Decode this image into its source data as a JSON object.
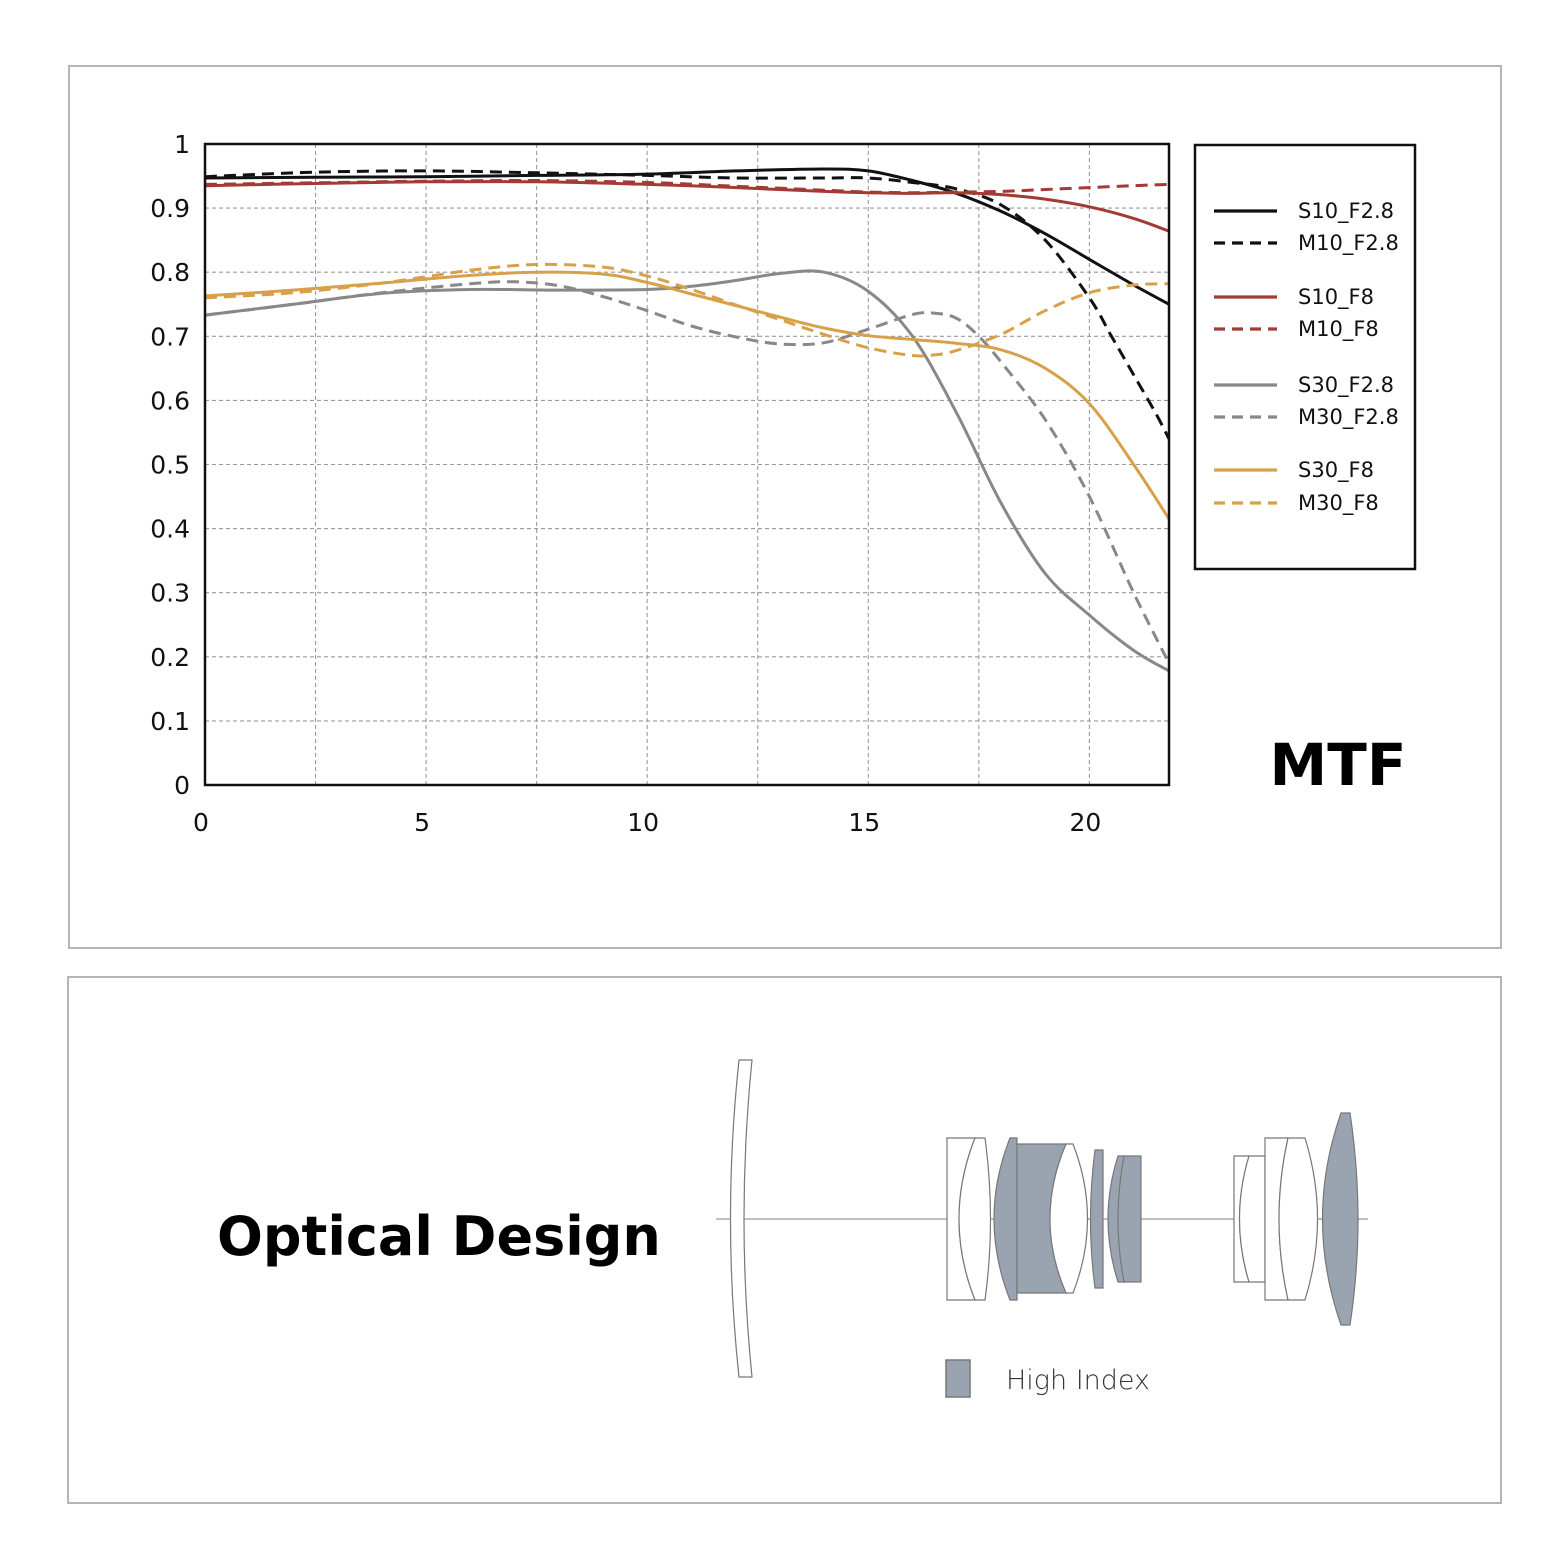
{
  "chart_data": {
    "type": "line",
    "title": "MTF",
    "xlabel": "",
    "ylabel": "",
    "xlim": [
      0,
      21.8
    ],
    "ylim": [
      0,
      1
    ],
    "xticks": [
      "0",
      "5",
      "10",
      "15",
      "20"
    ],
    "yticks": [
      "0",
      "0.1",
      "0.2",
      "0.3",
      "0.4",
      "0.5",
      "0.6",
      "0.7",
      "0.8",
      "0.9",
      "1"
    ],
    "grid": true,
    "legend_position": "right",
    "series": [
      {
        "name": "S10_F2.8",
        "color": "#111111",
        "dashed": false,
        "x": [
          0,
          2.5,
          5,
          7.5,
          10,
          12,
          14,
          15,
          16,
          17,
          18,
          19,
          20,
          21,
          21.8
        ],
        "y": [
          0.947,
          0.948,
          0.949,
          0.951,
          0.953,
          0.958,
          0.961,
          0.958,
          0.943,
          0.923,
          0.895,
          0.86,
          0.82,
          0.78,
          0.75
        ]
      },
      {
        "name": "M10_F2.8",
        "color": "#111111",
        "dashed": true,
        "x": [
          0,
          2.5,
          5,
          7.5,
          10,
          12,
          14,
          15,
          16,
          17,
          18,
          19,
          20,
          20.5,
          21,
          21.5,
          21.8
        ],
        "y": [
          0.949,
          0.956,
          0.958,
          0.955,
          0.951,
          0.947,
          0.947,
          0.947,
          0.94,
          0.93,
          0.905,
          0.85,
          0.76,
          0.7,
          0.64,
          0.58,
          0.54
        ]
      },
      {
        "name": "S10_F8",
        "color": "#a33a35",
        "dashed": false,
        "x": [
          0,
          3,
          5,
          7.5,
          10,
          12,
          14,
          15,
          16,
          17,
          18,
          19,
          20,
          21,
          21.8
        ],
        "y": [
          0.935,
          0.939,
          0.941,
          0.941,
          0.937,
          0.932,
          0.926,
          0.924,
          0.923,
          0.924,
          0.921,
          0.914,
          0.902,
          0.884,
          0.864
        ]
      },
      {
        "name": "M10_F8",
        "color": "#a33a35",
        "dashed": true,
        "x": [
          0,
          3,
          5,
          7.5,
          10,
          12,
          14,
          15,
          16,
          17,
          18,
          19,
          20,
          21,
          21.8
        ],
        "y": [
          0.937,
          0.94,
          0.942,
          0.943,
          0.94,
          0.934,
          0.928,
          0.925,
          0.924,
          0.925,
          0.926,
          0.929,
          0.932,
          0.935,
          0.937
        ]
      },
      {
        "name": "S30_F2.8",
        "color": "#888888",
        "dashed": false,
        "x": [
          0,
          2,
          4,
          6,
          8,
          10,
          11,
          12,
          13,
          14,
          15,
          16,
          17,
          18,
          19,
          20,
          21,
          21.8
        ],
        "y": [
          0.733,
          0.75,
          0.767,
          0.773,
          0.772,
          0.773,
          0.778,
          0.787,
          0.798,
          0.8,
          0.77,
          0.7,
          0.58,
          0.44,
          0.33,
          0.265,
          0.21,
          0.178
        ]
      },
      {
        "name": "M30_F2.8",
        "color": "#888888",
        "dashed": true,
        "x": [
          0,
          2,
          4,
          6,
          7,
          8,
          9,
          10,
          11,
          12,
          13,
          14,
          15,
          16,
          16.5,
          17,
          17.5,
          18,
          19,
          20,
          21,
          21.8
        ],
        "y": [
          0.733,
          0.75,
          0.768,
          0.782,
          0.785,
          0.779,
          0.762,
          0.74,
          0.716,
          0.699,
          0.688,
          0.69,
          0.711,
          0.734,
          0.736,
          0.728,
          0.7,
          0.66,
          0.57,
          0.45,
          0.3,
          0.19
        ]
      },
      {
        "name": "S30_F8",
        "color": "#d9a04a",
        "dashed": false,
        "x": [
          0,
          2,
          4,
          6,
          7.5,
          9,
          10,
          11,
          12,
          13,
          14,
          15,
          16,
          17,
          18,
          19,
          20,
          21,
          21.8
        ],
        "y": [
          0.763,
          0.772,
          0.783,
          0.795,
          0.8,
          0.797,
          0.784,
          0.766,
          0.748,
          0.73,
          0.713,
          0.701,
          0.695,
          0.689,
          0.679,
          0.65,
          0.595,
          0.5,
          0.415
        ]
      },
      {
        "name": "M30_F8",
        "color": "#d9a04a",
        "dashed": true,
        "x": [
          0,
          2,
          4,
          6,
          7.5,
          9,
          10,
          11,
          12,
          13,
          14,
          15,
          16,
          16.5,
          17,
          18,
          19,
          20,
          21,
          21.8
        ],
        "y": [
          0.76,
          0.768,
          0.783,
          0.803,
          0.812,
          0.808,
          0.794,
          0.773,
          0.749,
          0.726,
          0.703,
          0.682,
          0.67,
          0.671,
          0.678,
          0.703,
          0.74,
          0.768,
          0.78,
          0.782
        ]
      }
    ]
  },
  "optics": {
    "title": "Optical Design",
    "legend_label": "High Index",
    "high_index_color": "#9aa4b0"
  }
}
